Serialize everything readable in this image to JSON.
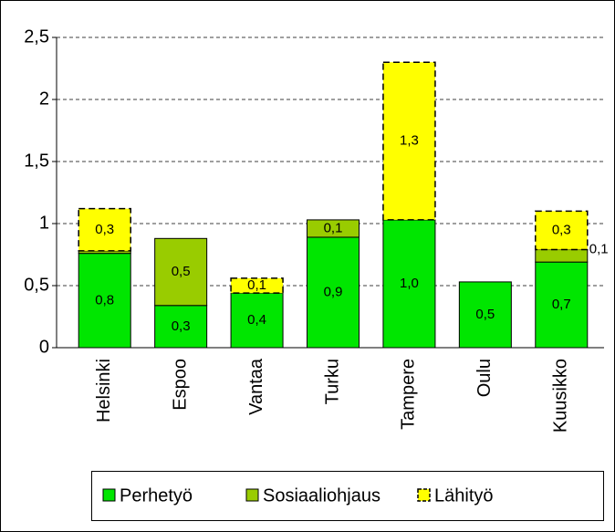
{
  "chart_data": {
    "type": "bar",
    "stacked": true,
    "categories": [
      "Helsinki",
      "Espoo",
      "Vantaa",
      "Turku",
      "Tampere",
      "Oulu",
      "Kuusikko"
    ],
    "series": [
      {
        "name": "Perhetyö",
        "color": "#00e600",
        "values": [
          0.76,
          0.34,
          0.44,
          0.89,
          1.03,
          0.53,
          0.69
        ],
        "value_labels": [
          "0,8",
          "0,3",
          "0,4",
          "0,9",
          "1,0",
          "0,5",
          "0,7"
        ]
      },
      {
        "name": "Sosiaaliohjaus",
        "color": "#99cc00",
        "values": [
          0.02,
          0.54,
          0,
          0.14,
          0,
          0,
          0.1
        ],
        "value_labels": [
          null,
          "0,5",
          null,
          "0,1",
          null,
          null,
          "0,1"
        ]
      },
      {
        "name": "Lähityö",
        "color": "#ffff00",
        "dashed": true,
        "values": [
          0.34,
          0,
          0.12,
          0,
          1.27,
          0,
          0.31
        ],
        "value_labels": [
          "0,3",
          null,
          "0,1",
          null,
          "1,3",
          null,
          "0,3"
        ]
      }
    ],
    "ylim": [
      0,
      2.5
    ],
    "yticks": [
      0,
      {
        "value": 0.5,
        "label": "0,5"
      },
      1,
      {
        "value": 1.5,
        "label": "1,5"
      },
      2,
      {
        "value": 2.5,
        "label": "2,5"
      }
    ],
    "grid": true,
    "legend": "bottom"
  }
}
